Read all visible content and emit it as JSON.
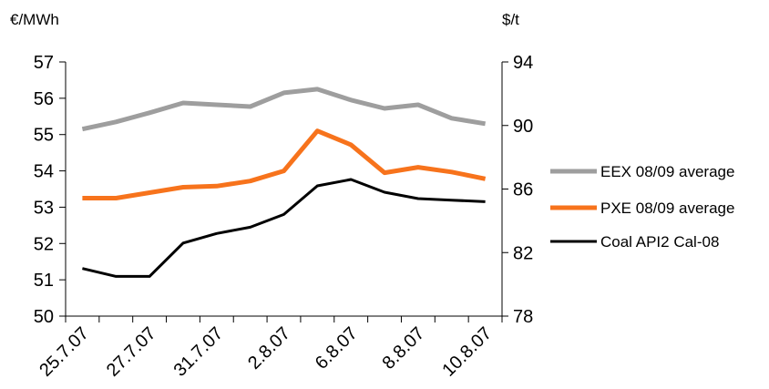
{
  "chart_data": {
    "type": "line",
    "left_axis": {
      "unit": "€/MWh",
      "ylim": [
        50,
        57
      ],
      "ticks": [
        50,
        51,
        52,
        53,
        54,
        55,
        56,
        57
      ]
    },
    "right_axis": {
      "unit": "$/t",
      "ylim": [
        78,
        94
      ],
      "ticks": [
        78,
        82,
        86,
        90,
        94
      ]
    },
    "x_tick_labels": [
      "25.7.07",
      "27.7.07",
      "31.7.07",
      "2.8.07",
      "6.8.07",
      "8.8.07",
      "10.8.07"
    ],
    "grid": false,
    "legend_position": "right",
    "series": [
      {
        "name": "EEX 08/09 average",
        "axis": "left",
        "color": "#9e9e9e",
        "values": [
          55.15,
          55.35,
          55.6,
          55.87,
          55.82,
          55.77,
          56.15,
          56.25,
          55.95,
          55.72,
          55.82,
          55.45,
          55.3
        ]
      },
      {
        "name": "PXE 08/09 average",
        "axis": "left",
        "color": "#f7731c",
        "values": [
          53.25,
          53.25,
          53.4,
          53.55,
          53.58,
          53.72,
          54.0,
          55.1,
          54.72,
          53.95,
          54.1,
          53.97,
          53.78
        ]
      },
      {
        "name": "Coal API2 Cal-08",
        "axis": "right",
        "color": "#000000",
        "values": [
          81.0,
          80.5,
          80.5,
          82.6,
          83.2,
          83.6,
          84.4,
          86.2,
          86.6,
          85.8,
          85.4,
          85.3,
          85.2
        ]
      }
    ]
  }
}
